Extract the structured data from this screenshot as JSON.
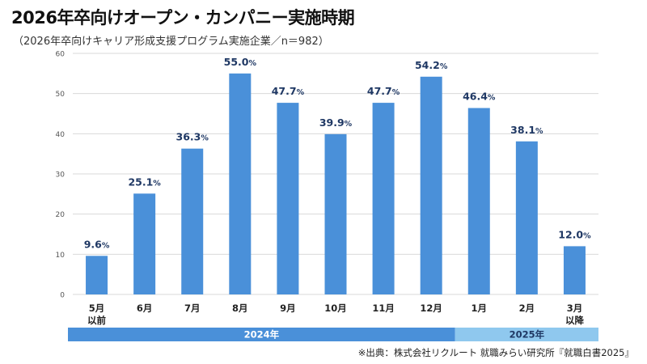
{
  "header": {
    "title": "2026年卒向けオープン・カンパニー実施時期",
    "subtitle": "（2026年卒向けキャリア形成支援プログラム実施企業／n＝982）"
  },
  "footer": {
    "source": "※出典：株式会社リクルート 就職みらい研究所『就職白書2025』"
  },
  "colors": {
    "bar": "#4a90d9",
    "label": "#1f3864",
    "grid": "#d9d9d9",
    "year2024": "#4a90d9",
    "year2025": "#8fc8ee"
  },
  "chart_data": {
    "type": "bar",
    "categories": [
      [
        "5月",
        "以前"
      ],
      [
        "6月"
      ],
      [
        "7月"
      ],
      [
        "8月"
      ],
      [
        "9月"
      ],
      [
        "10月"
      ],
      [
        "11月"
      ],
      [
        "12月"
      ],
      [
        "1月"
      ],
      [
        "2月"
      ],
      [
        "3月",
        "以降"
      ]
    ],
    "values": [
      9.6,
      25.1,
      36.3,
      55.0,
      47.7,
      39.9,
      47.7,
      54.2,
      46.4,
      38.1,
      12.0
    ],
    "value_labels": [
      "9.6",
      "25.1",
      "36.3",
      "55.0",
      "47.7",
      "39.9",
      "47.7",
      "54.2",
      "46.4",
      "38.1",
      "12.0"
    ],
    "value_unit": "%",
    "ylim": [
      0,
      60
    ],
    "yticks": [
      0,
      10,
      20,
      30,
      40,
      50,
      60
    ],
    "grid": true,
    "year_bands": [
      {
        "label": "2024年",
        "from": 0,
        "to": 7
      },
      {
        "label": "2025年",
        "from": 8,
        "to": 10
      }
    ]
  }
}
